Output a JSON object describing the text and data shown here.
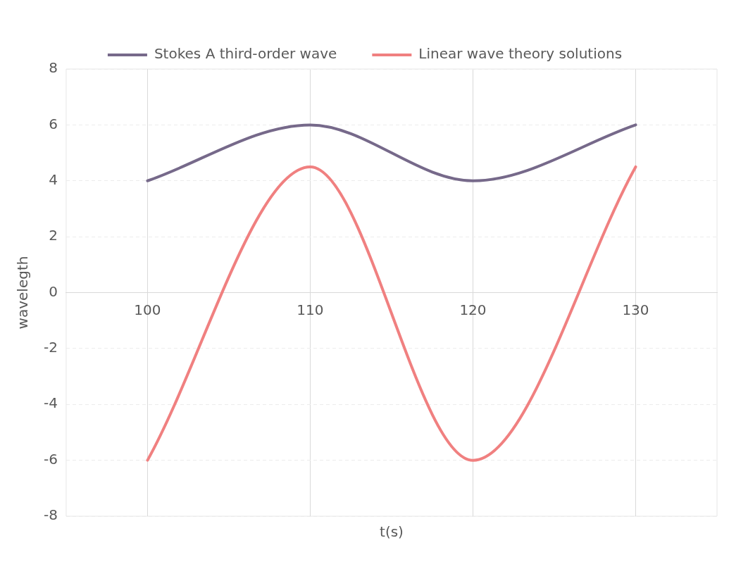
{
  "chart_data": {
    "type": "line",
    "xlabel": "t(s)",
    "ylabel": "wavelegth",
    "categories": [
      "100",
      "110",
      "120",
      "130"
    ],
    "series": [
      {
        "name": "Stokes A third-order wave",
        "color": "#76698a",
        "values": [
          4,
          6,
          4,
          6
        ]
      },
      {
        "name": "Linear wave theory solutions",
        "color": "#f08080",
        "values": [
          -6,
          4.5,
          -6,
          4.5
        ]
      }
    ],
    "ylim": [
      -8,
      8
    ],
    "yticks": [
      -8,
      -6,
      -4,
      -2,
      0,
      2,
      4,
      6,
      8
    ],
    "grid": true,
    "legend": "top",
    "marker": "none",
    "line_style": "solid"
  }
}
